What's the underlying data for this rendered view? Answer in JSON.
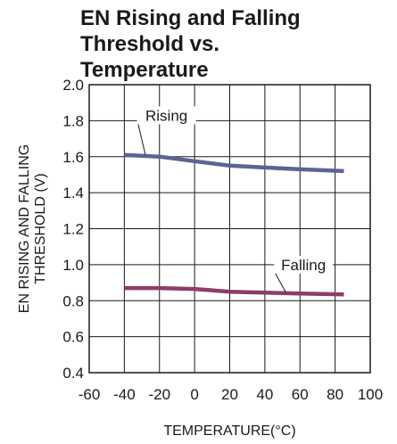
{
  "chart_data": {
    "type": "line",
    "title": "EN Rising and Falling Threshold vs. Temperature",
    "xlabel": "TEMPERATURE(°C)",
    "ylabel_lines": [
      "EN RISING AND FALLING",
      "THRESHOLD (V)"
    ],
    "xlim": [
      -60,
      100
    ],
    "ylim": [
      0.4,
      2.0
    ],
    "x_ticks": [
      "-60",
      "-40",
      "-20",
      "0",
      "20",
      "40",
      "60",
      "80",
      "100"
    ],
    "y_ticks": [
      "0.4",
      "0.6",
      "0.8",
      "1.0",
      "1.2",
      "1.4",
      "1.6",
      "1.8",
      "2.0"
    ],
    "grid": true,
    "series": [
      {
        "name": "Rising",
        "color": "#5c6394",
        "x": [
          -40,
          -20,
          0,
          20,
          40,
          60,
          85
        ],
        "y": [
          1.61,
          1.6,
          1.575,
          1.55,
          1.54,
          1.53,
          1.52
        ]
      },
      {
        "name": "Falling",
        "color": "#8e3d6a",
        "x": [
          -40,
          -20,
          0,
          20,
          40,
          60,
          85
        ],
        "y": [
          0.87,
          0.87,
          0.865,
          0.85,
          0.845,
          0.84,
          0.835
        ]
      }
    ]
  }
}
